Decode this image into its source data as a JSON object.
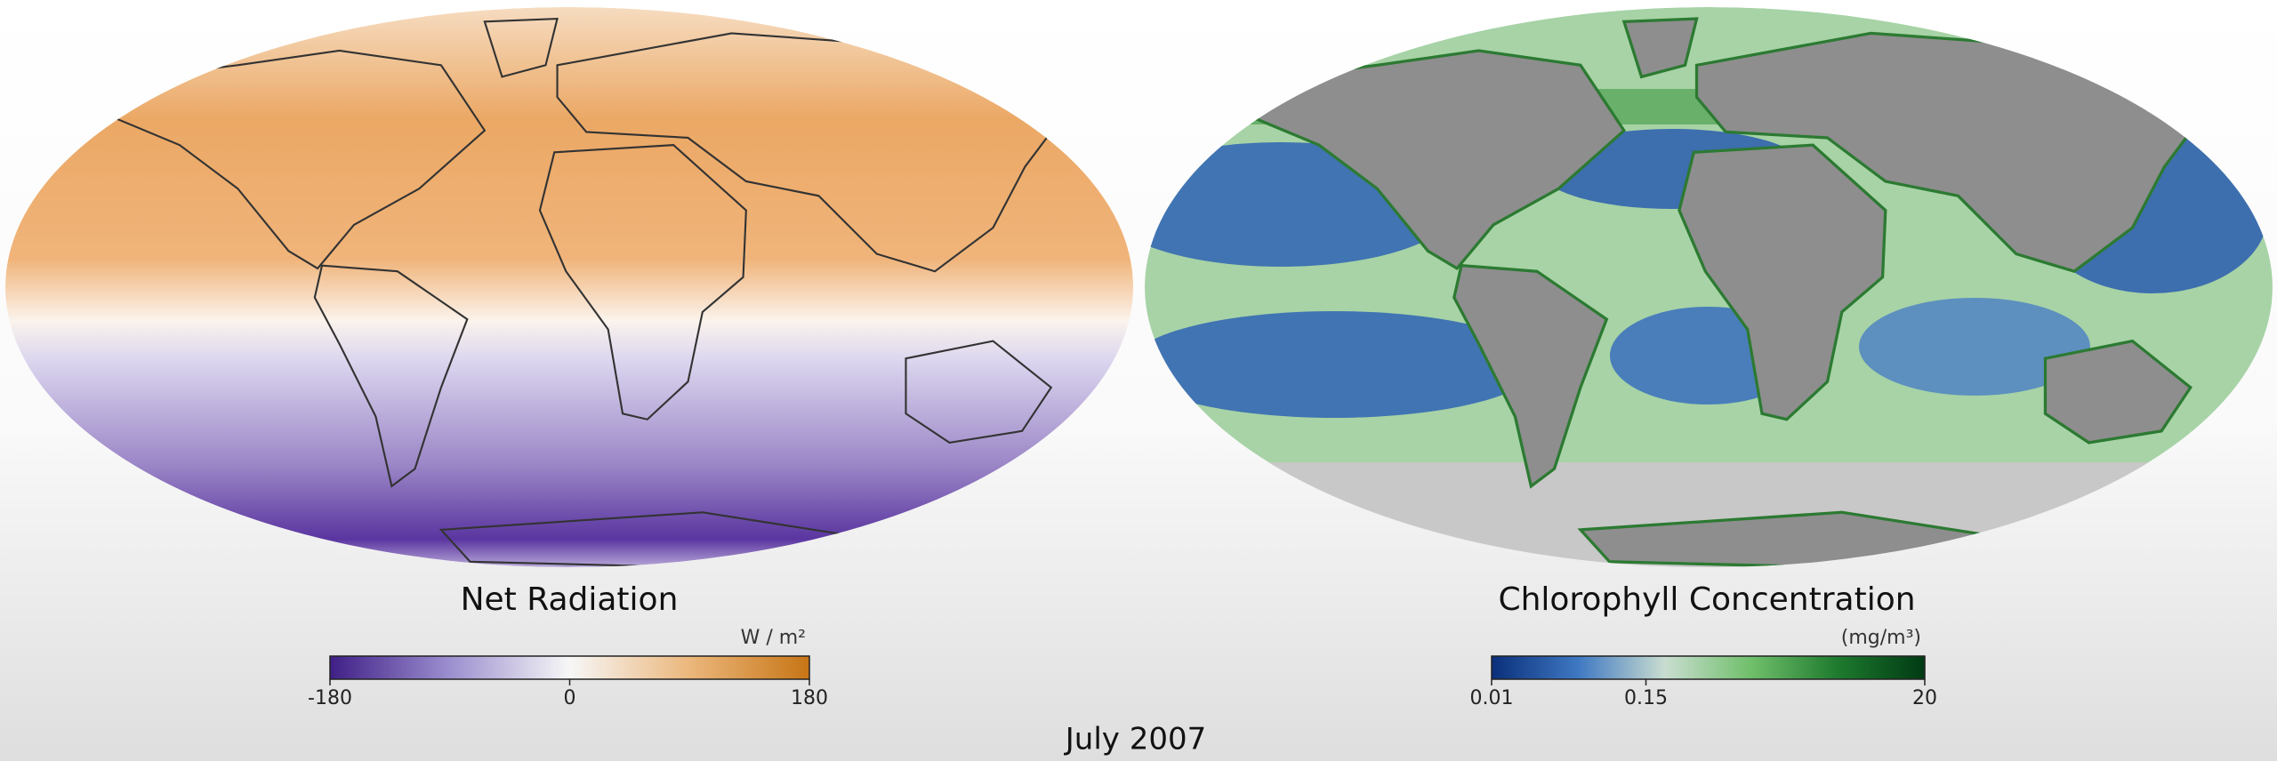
{
  "panels": [
    {
      "title": "Net Radiation",
      "colorbar": {
        "unit": "W / m²",
        "lim": [
          -180,
          180
        ],
        "ticks": [
          -180,
          0,
          180
        ],
        "log": false,
        "colors": [
          "#3f1f86",
          "#9c8fcf",
          "#f7f7f7",
          "#ebb77c",
          "#c77515"
        ]
      }
    },
    {
      "title": "Chlorophyll Concentration",
      "colorbar": {
        "unit": "(mg/m³)",
        "lim": [
          0.01,
          20
        ],
        "ticks": [
          0.01,
          0.15,
          20
        ],
        "log": true,
        "colors": [
          "#0a2f7a",
          "#3f78c2",
          "#c9ddd0",
          "#6fbf6a",
          "#1e7a2e",
          "#003a14"
        ]
      }
    }
  ],
  "date": "July 2007"
}
